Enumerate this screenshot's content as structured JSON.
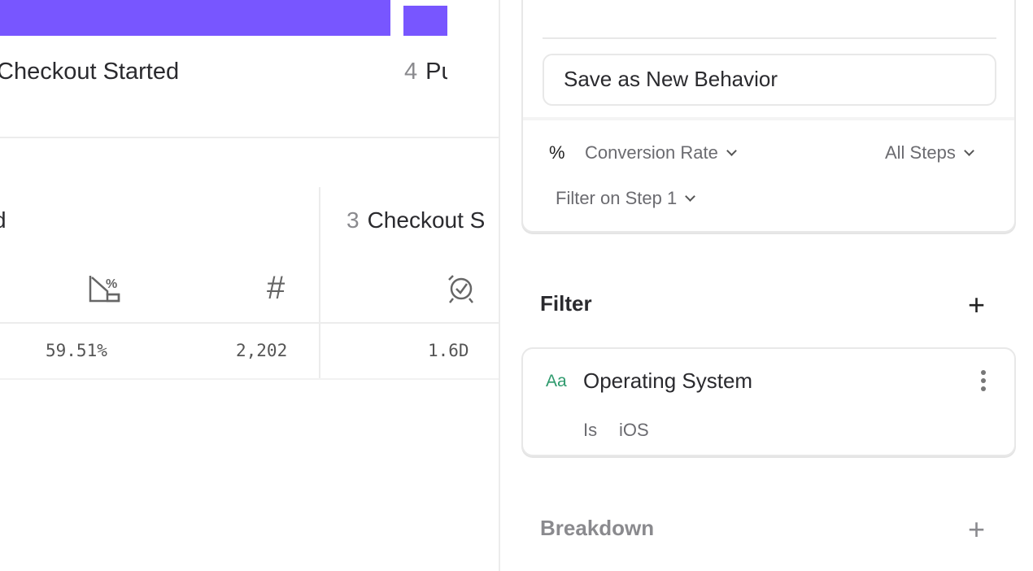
{
  "funnel": {
    "bar_color": "#7856ff",
    "steps": [
      {
        "label": "Checkout Started"
      },
      {
        "num": "4",
        "label": "Pu"
      }
    ]
  },
  "table": {
    "prev_step_label": "d",
    "step3": {
      "num": "3",
      "label": "Checkout S"
    },
    "row": {
      "conversion": "59.51%",
      "count": "2,202",
      "time": "1.6D"
    }
  },
  "panel": {
    "save_button": "Save as New Behavior",
    "measure": {
      "icon": "%",
      "metric": "Conversion Rate",
      "steps": "All Steps",
      "filter_step": "Filter on Step 1"
    },
    "filter": {
      "title": "Filter",
      "property": "Operating System",
      "type_icon": "Aa",
      "operator": "Is",
      "value": "iOS"
    },
    "breakdown": {
      "title": "Breakdown"
    }
  }
}
